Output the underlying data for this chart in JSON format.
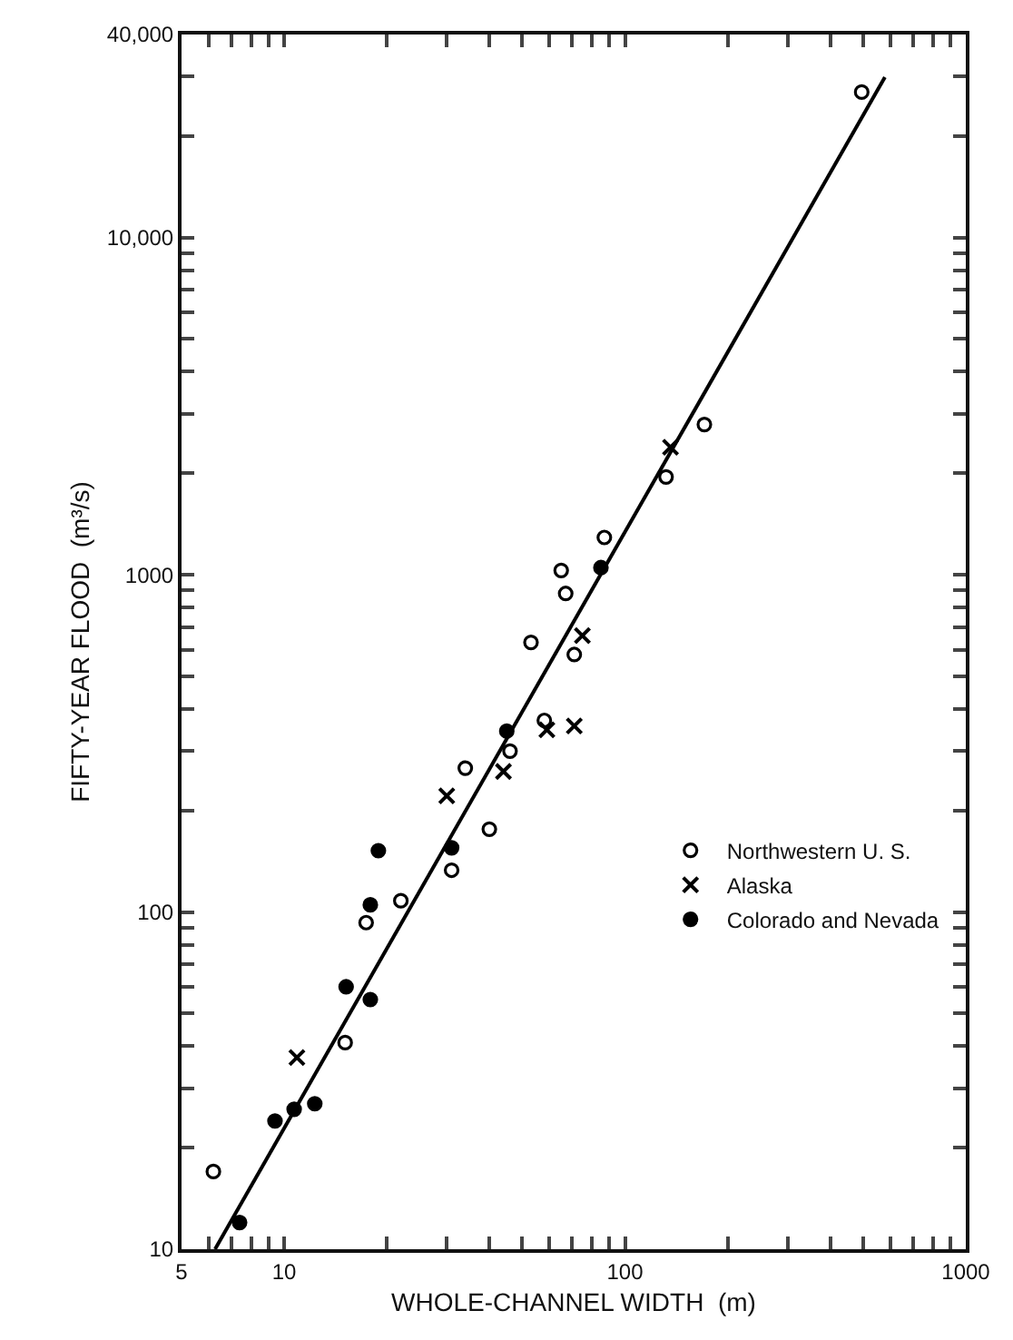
{
  "chart_data": {
    "type": "scatter",
    "xlabel": "WHOLE-CHANNEL WIDTH  (m)",
    "ylabel": "FIFTY-YEAR FLOOD  (m³/s)",
    "log": "xy",
    "grid": false,
    "legend": "right",
    "xlim": [
      5,
      1000
    ],
    "ylim": [
      10,
      40000
    ],
    "xticks": [
      5,
      {
        "value": 6,
        "label": null
      },
      {
        "value": 7,
        "label": null
      },
      {
        "value": 8,
        "label": null
      },
      {
        "value": 9,
        "label": null
      },
      10,
      {
        "value": 20,
        "label": null
      },
      {
        "value": 30,
        "label": null
      },
      {
        "value": 40,
        "label": null
      },
      {
        "value": 50,
        "label": null
      },
      {
        "value": 60,
        "label": null
      },
      {
        "value": 70,
        "label": null
      },
      {
        "value": 80,
        "label": null
      },
      {
        "value": 90,
        "label": null
      },
      100,
      {
        "value": 200,
        "label": null
      },
      {
        "value": 300,
        "label": null
      },
      {
        "value": 400,
        "label": null
      },
      {
        "value": 500,
        "label": null
      },
      {
        "value": 600,
        "label": null
      },
      {
        "value": 700,
        "label": null
      },
      {
        "value": 800,
        "label": null
      },
      {
        "value": 900,
        "label": null
      },
      1000
    ],
    "yticks": [
      10,
      {
        "value": 20,
        "label": null
      },
      {
        "value": 30,
        "label": null
      },
      {
        "value": 40,
        "label": null
      },
      {
        "value": 50,
        "label": null
      },
      {
        "value": 60,
        "label": null
      },
      {
        "value": 70,
        "label": null
      },
      {
        "value": 80,
        "label": null
      },
      {
        "value": 90,
        "label": null
      },
      100,
      {
        "value": 200,
        "label": null
      },
      {
        "value": 300,
        "label": null
      },
      {
        "value": 400,
        "label": null
      },
      {
        "value": 500,
        "label": null
      },
      {
        "value": 600,
        "label": null
      },
      {
        "value": 700,
        "label": null
      },
      {
        "value": 800,
        "label": null
      },
      {
        "value": 900,
        "label": null
      },
      1000,
      {
        "value": 2000,
        "label": null
      },
      {
        "value": 3000,
        "label": null
      },
      {
        "value": 4000,
        "label": null
      },
      {
        "value": 5000,
        "label": null
      },
      {
        "value": 6000,
        "label": null
      },
      {
        "value": 7000,
        "label": null
      },
      {
        "value": 8000,
        "label": null
      },
      {
        "value": 9000,
        "label": null
      },
      {
        "value": 10000,
        "label": "10,000"
      },
      {
        "value": 20000,
        "label": null
      },
      {
        "value": 30000,
        "label": null
      },
      {
        "value": 40000,
        "label": "40,000"
      }
    ],
    "series": [
      {
        "name": "Northwestern U. S.",
        "color": "#000000",
        "marker": "circle",
        "x": [
          495,
          171,
          132,
          87,
          65,
          67,
          53,
          71,
          58,
          46,
          34,
          40,
          31,
          22,
          17.4,
          15.1,
          6.2
        ],
        "values": [
          27000,
          2790,
          1950,
          1290,
          1030,
          880,
          630,
          580,
          370,
          300,
          267,
          176,
          133,
          108,
          93,
          41,
          17
        ]
      },
      {
        "name": "Alaska",
        "color": "#000000",
        "marker": "cross",
        "x": [
          136,
          75,
          71,
          59,
          44,
          30,
          10.9
        ],
        "values": [
          2390,
          660,
          356,
          347,
          261,
          221,
          37
        ]
      },
      {
        "name": "Colorado and Nevada",
        "color": "#000000",
        "marker": "circle",
        "x": [
          85,
          45,
          18.9,
          31,
          17.9,
          15.2,
          17.9,
          12.3,
          10.7,
          9.4,
          7.4
        ],
        "values": [
          1050,
          344,
          152,
          155,
          105,
          60,
          55,
          27,
          26,
          24,
          12
        ]
      },
      {
        "type": "line",
        "color": "#000000",
        "marker": "none",
        "line_style": "solid",
        "x": [
          6.27,
          579
        ],
        "values": [
          10,
          29900
        ]
      }
    ]
  }
}
